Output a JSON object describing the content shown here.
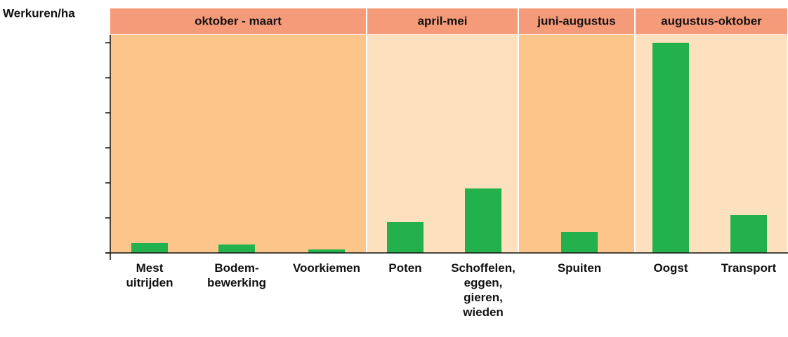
{
  "chart_data": {
    "type": "bar",
    "y_label": "Werkuren/ha",
    "periods": [
      "oktober - maart",
      "april-mei",
      "juni-augustus",
      "augustus-oktober"
    ],
    "categories": [
      "Mest\nuitrijden",
      "Bodem-\nbewerking",
      "Voorkiemen",
      "Poten",
      "Schoffelen,\neggen,\ngieren,\nwieden",
      "Spuiten",
      "Oogst",
      "Transport"
    ],
    "values": [
      0.28,
      0.24,
      0.1,
      0.88,
      1.84,
      0.6,
      6.0,
      1.08
    ],
    "color": "#22b14c",
    "ylim": [
      0,
      6
    ],
    "yticks": [
      0,
      1,
      2,
      3,
      4,
      5,
      6
    ]
  }
}
